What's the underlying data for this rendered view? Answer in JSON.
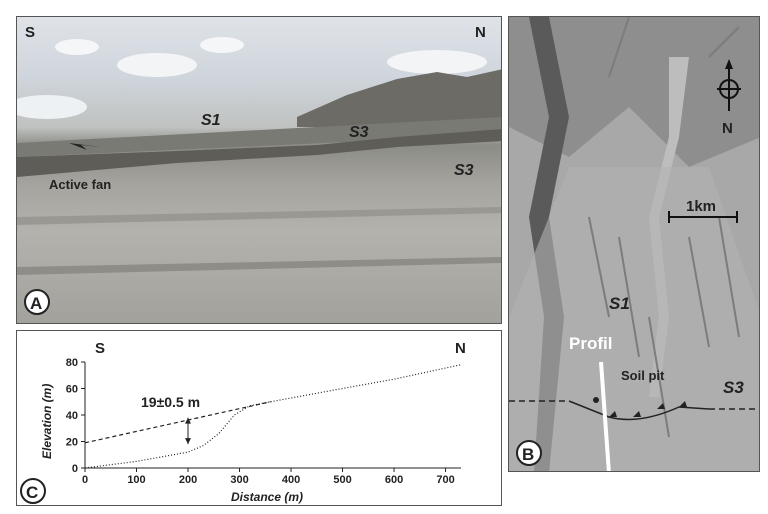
{
  "panel_a": {
    "letter": "A",
    "dir_left": "S",
    "dir_right": "N",
    "surfaces": [
      "S1",
      "S3",
      "S3"
    ],
    "active_fan": "Active fan"
  },
  "panel_b": {
    "letter": "B",
    "north": "N",
    "scale": "1km",
    "surface_left": "S1",
    "surface_right": "S3",
    "profil": "Profil",
    "soil_pit": "Soil pit"
  },
  "panel_c": {
    "letter": "C",
    "dir_left": "S",
    "dir_right": "N",
    "offset_label": "19±0.5 m"
  },
  "chart_data": {
    "type": "line",
    "xlabel": "Distance (m)",
    "ylabel": "Elevation (m)",
    "xlim": [
      0,
      730
    ],
    "ylim": [
      0,
      80
    ],
    "xticks": [
      0,
      100,
      200,
      300,
      400,
      500,
      600,
      700
    ],
    "yticks": [
      0,
      20,
      40,
      60,
      80
    ],
    "series": [
      {
        "style": "dashed",
        "x": [
          0,
          360
        ],
        "y": [
          19,
          50
        ]
      },
      {
        "style": "dotted",
        "x": [
          0,
          100,
          200,
          230,
          260,
          290,
          320,
          360,
          500,
          600,
          730
        ],
        "y": [
          0,
          5,
          12,
          17,
          26,
          40,
          47,
          50,
          60,
          67,
          78
        ]
      }
    ],
    "annotation": {
      "x": 200,
      "y_low": 18,
      "y_high": 38
    }
  }
}
